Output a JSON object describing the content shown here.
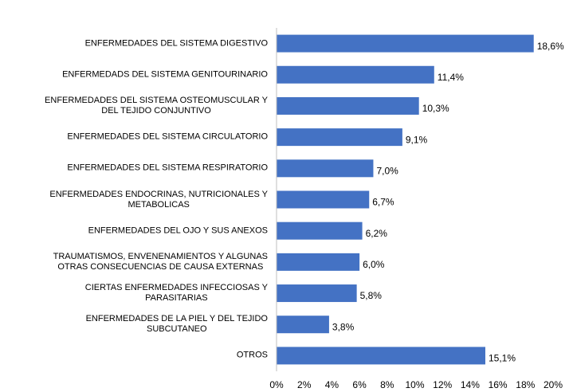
{
  "chart_data": {
    "type": "bar",
    "orientation": "horizontal",
    "categories": [
      "ENFERMEDADES DEL SISTEMA DIGESTIVO",
      "ENFERMEDADS DEL SISTEMA GENITOURINARIO",
      "ENFERMEDADES DEL SISTEMA OSTEOMUSCULAR Y\nDEL TEJIDO CONJUNTIVO",
      "ENFERMEDADES DEL SISTEMA CIRCULATORIO",
      "ENFERMEDADES DEL SISTEMA RESPIRATORIO",
      "ENFERMEDADES ENDOCRINAS, NUTRICIONALES Y\nMETABOLICAS",
      "ENFERMEDADES DEL OJO Y SUS ANEXOS",
      "TRAUMATISMOS, ENVENENAMIENTOS Y ALGUNAS\nOTRAS CONSECUENCIAS DE CAUSA EXTERNAS",
      "CIERTAS ENFERMEDADES INFECCIOSAS Y\nPARASITARIAS",
      "ENFERMEDADES DE LA PIEL Y DEL TEJIDO\nSUBCUTANEO",
      "OTROS"
    ],
    "values": [
      18.6,
      11.4,
      10.3,
      9.1,
      7.0,
      6.7,
      6.2,
      6.0,
      5.8,
      3.8,
      15.1
    ],
    "value_labels": [
      "18,6%",
      "11,4%",
      "10,3%",
      "9,1%",
      "7,0%",
      "6,7%",
      "6,2%",
      "6,0%",
      "5,8%",
      "3,8%",
      "15,1%"
    ],
    "color": "#4472c4",
    "xlim": [
      0,
      20
    ],
    "xticks": [
      {
        "value": 0,
        "label": "0%"
      },
      {
        "value": 2,
        "label": "2%"
      },
      {
        "value": 4,
        "label": "4%"
      },
      {
        "value": 6,
        "label": "6%"
      },
      {
        "value": 8,
        "label": "8%"
      },
      {
        "value": 10,
        "label": "10%"
      },
      {
        "value": 12,
        "label": "12%"
      },
      {
        "value": 14,
        "label": "14%"
      },
      {
        "value": 16,
        "label": "16%"
      },
      {
        "value": 18,
        "label": "18%"
      },
      {
        "value": 20,
        "label": "20%"
      }
    ],
    "grid": false
  }
}
